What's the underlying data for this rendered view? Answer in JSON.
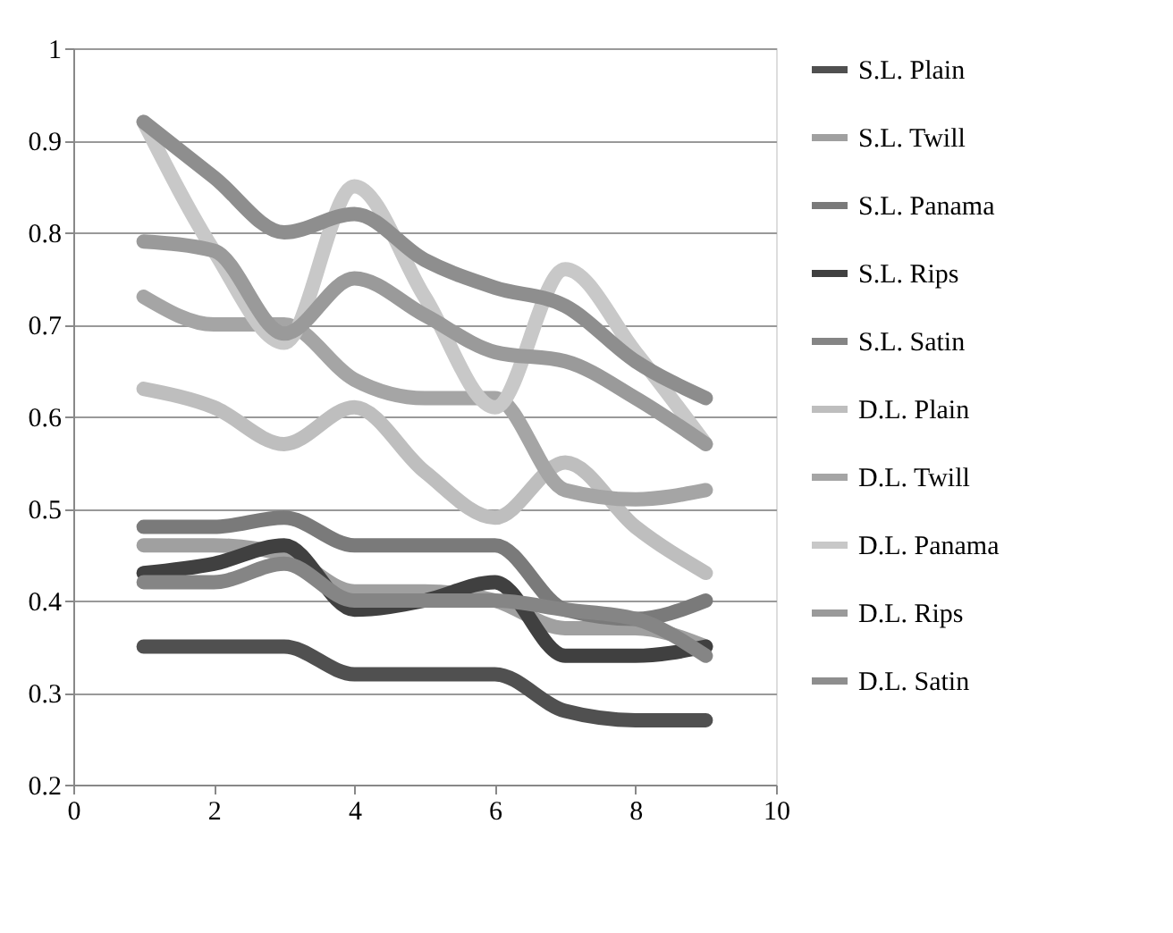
{
  "chart_data": {
    "type": "line",
    "x": [
      1,
      2,
      3,
      4,
      5,
      6,
      7,
      8,
      9
    ],
    "xlim": [
      0,
      10
    ],
    "xticks": [
      0,
      2,
      4,
      6,
      8,
      10
    ],
    "ylim": [
      0.2,
      1
    ],
    "yticks": [
      0.2,
      0.3,
      0.4,
      0.5,
      0.6,
      0.7,
      0.8,
      0.9,
      1
    ],
    "grid": "y",
    "legend": "right",
    "marker": "none",
    "line_style": "solid",
    "series": [
      {
        "name": "S.L. Plain",
        "color": "#505050",
        "values": [
          0.35,
          0.35,
          0.35,
          0.32,
          0.32,
          0.32,
          0.28,
          0.27,
          0.27
        ]
      },
      {
        "name": "S.L. Twill",
        "color": "#a0a0a0",
        "values": [
          0.46,
          0.46,
          0.45,
          0.41,
          0.41,
          0.4,
          0.37,
          0.37,
          0.35
        ]
      },
      {
        "name": "S.L. Panama",
        "color": "#7a7a7a",
        "values": [
          0.48,
          0.48,
          0.49,
          0.46,
          0.46,
          0.46,
          0.39,
          0.38,
          0.4
        ]
      },
      {
        "name": "S.L. Rips",
        "color": "#404040",
        "values": [
          0.43,
          0.44,
          0.46,
          0.39,
          0.4,
          0.42,
          0.34,
          0.34,
          0.35
        ]
      },
      {
        "name": "S.L. Satin",
        "color": "#858585",
        "values": [
          0.42,
          0.42,
          0.44,
          0.4,
          0.4,
          0.4,
          0.39,
          0.38,
          0.34
        ]
      },
      {
        "name": "D.L. Plain",
        "color": "#bebebe",
        "values": [
          0.63,
          0.61,
          0.57,
          0.61,
          0.54,
          0.49,
          0.55,
          0.48,
          0.43
        ]
      },
      {
        "name": "D.L. Twill",
        "color": "#a5a5a5",
        "values": [
          0.73,
          0.7,
          0.7,
          0.64,
          0.62,
          0.62,
          0.52,
          0.51,
          0.52
        ]
      },
      {
        "name": "D.L. Panama",
        "color": "#c8c8c8",
        "values": [
          0.92,
          0.78,
          0.68,
          0.85,
          0.73,
          0.61,
          0.76,
          0.67,
          0.57
        ]
      },
      {
        "name": "D.L. Rips",
        "color": "#9a9a9a",
        "values": [
          0.79,
          0.78,
          0.69,
          0.75,
          0.71,
          0.67,
          0.66,
          0.62,
          0.57
        ]
      },
      {
        "name": "D.L. Satin",
        "color": "#8e8e8e",
        "values": [
          0.92,
          0.86,
          0.8,
          0.82,
          0.77,
          0.74,
          0.72,
          0.66,
          0.62
        ]
      }
    ]
  }
}
